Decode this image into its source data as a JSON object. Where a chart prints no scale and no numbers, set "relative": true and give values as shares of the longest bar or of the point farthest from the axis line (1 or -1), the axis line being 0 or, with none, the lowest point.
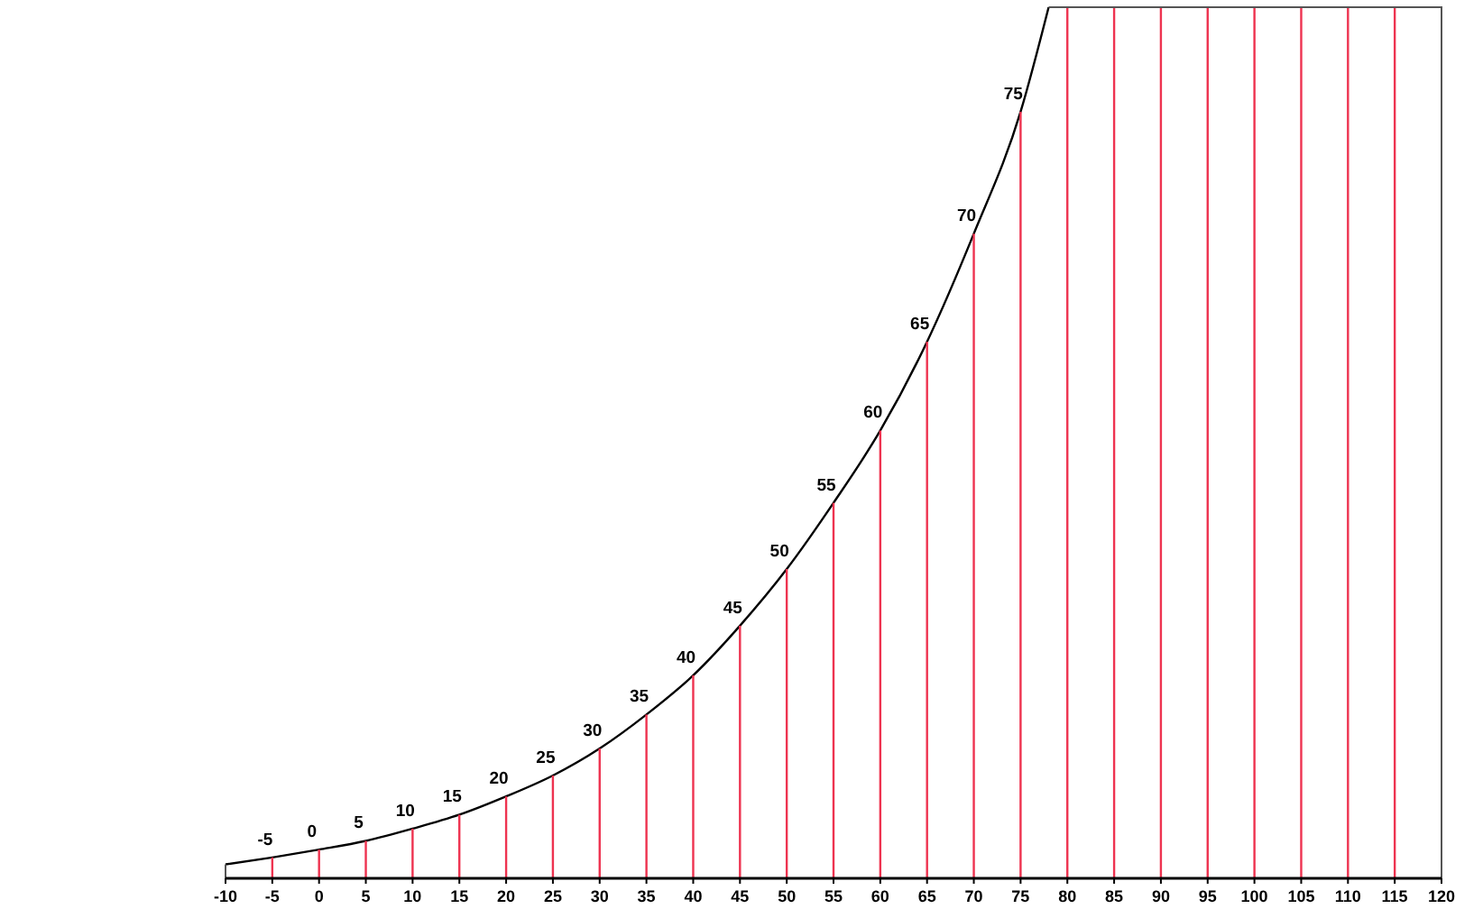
{
  "chart_data": {
    "type": "line",
    "relative": true,
    "xlim": [
      -10,
      120
    ],
    "xticks": [
      -10,
      -5,
      0,
      5,
      10,
      15,
      20,
      25,
      30,
      35,
      40,
      45,
      50,
      55,
      60,
      65,
      70,
      75,
      80,
      85,
      90,
      95,
      100,
      105,
      110,
      115,
      120
    ],
    "series": [
      {
        "color": "#000000",
        "x": [
          -10,
          -5,
          0,
          5,
          10,
          15,
          20,
          25,
          30,
          35,
          40,
          45,
          50,
          55,
          60,
          65,
          70,
          75,
          78
        ],
        "values": [
          0.016,
          0.024,
          0.033,
          0.043,
          0.057,
          0.073,
          0.094,
          0.118,
          0.149,
          0.188,
          0.233,
          0.29,
          0.355,
          0.431,
          0.514,
          0.616,
          0.74,
          0.88,
          1
        ]
      },
      {
        "type": "bar",
        "color": "#ee3350",
        "x": [
          -5,
          0,
          5,
          10,
          15,
          20,
          25,
          30,
          35,
          40,
          45,
          50,
          55,
          60,
          65,
          70,
          75,
          80,
          85,
          90,
          95,
          100,
          105,
          110,
          115
        ],
        "values": [
          0.024,
          0.033,
          0.043,
          0.057,
          0.073,
          0.094,
          0.118,
          0.149,
          0.188,
          0.233,
          0.29,
          0.355,
          0.431,
          0.514,
          0.616,
          0.74,
          0.88,
          1,
          1,
          1,
          1,
          1,
          1,
          1,
          1
        ]
      }
    ],
    "annotations": [
      {
        "text": "-5",
        "x": -5,
        "y": 0.024
      },
      {
        "text": "0",
        "x": 0,
        "y": 0.033
      },
      {
        "text": "5",
        "x": 5,
        "y": 0.043
      },
      {
        "text": "10",
        "x": 10,
        "y": 0.057
      },
      {
        "text": "15",
        "x": 15,
        "y": 0.073
      },
      {
        "text": "20",
        "x": 20,
        "y": 0.094
      },
      {
        "text": "25",
        "x": 25,
        "y": 0.118
      },
      {
        "text": "30",
        "x": 30,
        "y": 0.149
      },
      {
        "text": "35",
        "x": 35,
        "y": 0.188
      },
      {
        "text": "40",
        "x": 40,
        "y": 0.233
      },
      {
        "text": "45",
        "x": 45,
        "y": 0.29
      },
      {
        "text": "50",
        "x": 50,
        "y": 0.355
      },
      {
        "text": "55",
        "x": 55,
        "y": 0.431
      },
      {
        "text": "60",
        "x": 60,
        "y": 0.514
      },
      {
        "text": "65",
        "x": 65,
        "y": 0.616
      },
      {
        "text": "70",
        "x": 70,
        "y": 0.74
      },
      {
        "text": "75",
        "x": 75,
        "y": 0.88
      }
    ]
  }
}
